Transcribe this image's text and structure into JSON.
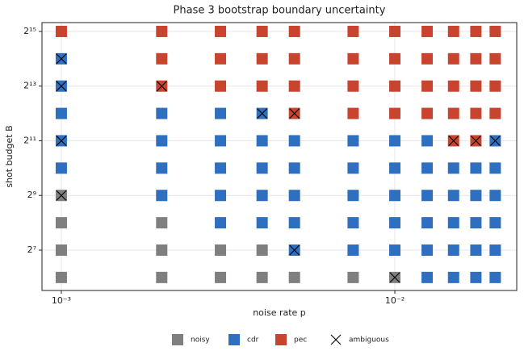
{
  "chart_data": {
    "type": "scatter",
    "title": "Phase 3 bootstrap boundary uncertainty",
    "x_label": "noise rate p",
    "y_label": "shot budget B",
    "x_log": true,
    "y_log_base": 2,
    "grid": true,
    "legend": "bottom",
    "xlim": [
      0.000875,
      0.0232
    ],
    "ylim": [
      46,
      41000
    ],
    "xticks": [
      {
        "value": 0.001,
        "label": "10⁻³"
      },
      {
        "value": 0.01,
        "label": "10⁻²"
      }
    ],
    "yticks": [
      {
        "value": 128,
        "label": "2⁷"
      },
      {
        "value": 512,
        "label": "2⁹"
      },
      {
        "value": 2048,
        "label": "2¹¹"
      },
      {
        "value": 8192,
        "label": "2¹³"
      },
      {
        "value": 32768,
        "label": "2¹⁵"
      }
    ],
    "series": [
      {
        "name": "noisy",
        "color": "#7f7f7f",
        "marker": "square",
        "x": [
          0.001,
          0.001,
          0.001,
          0.001,
          0.002,
          0.002,
          0.002,
          0.003,
          0.003,
          0.004,
          0.004,
          0.005,
          0.0075,
          0.01
        ],
        "values": [
          64,
          128,
          256,
          512,
          64,
          128,
          256,
          64,
          128,
          64,
          128,
          64,
          64,
          64
        ]
      },
      {
        "name": "cdr",
        "color": "#2f6fc0",
        "marker": "square",
        "x": [
          0.001,
          0.001,
          0.001,
          0.001,
          0.001,
          0.002,
          0.002,
          0.002,
          0.002,
          0.003,
          0.003,
          0.003,
          0.003,
          0.003,
          0.004,
          0.004,
          0.004,
          0.004,
          0.004,
          0.005,
          0.005,
          0.005,
          0.005,
          0.005,
          0.0075,
          0.0075,
          0.0075,
          0.0075,
          0.0075,
          0.01,
          0.01,
          0.01,
          0.01,
          0.01,
          0.0125,
          0.0125,
          0.0125,
          0.0125,
          0.0125,
          0.0125,
          0.015,
          0.015,
          0.015,
          0.015,
          0.015,
          0.0175,
          0.0175,
          0.0175,
          0.0175,
          0.0175,
          0.02,
          0.02,
          0.02,
          0.02,
          0.02,
          0.02
        ],
        "values": [
          1024,
          2048,
          4096,
          8192,
          16384,
          512,
          1024,
          2048,
          4096,
          256,
          512,
          1024,
          2048,
          4096,
          256,
          512,
          1024,
          2048,
          4096,
          128,
          256,
          512,
          1024,
          2048,
          128,
          256,
          512,
          1024,
          2048,
          128,
          256,
          512,
          1024,
          2048,
          64,
          128,
          256,
          512,
          1024,
          2048,
          64,
          128,
          256,
          512,
          1024,
          64,
          128,
          256,
          512,
          1024,
          64,
          128,
          256,
          512,
          1024,
          2048
        ]
      },
      {
        "name": "pec",
        "color": "#c9442f",
        "marker": "square",
        "x": [
          0.001,
          0.002,
          0.002,
          0.002,
          0.003,
          0.003,
          0.003,
          0.004,
          0.004,
          0.004,
          0.005,
          0.005,
          0.005,
          0.005,
          0.0075,
          0.0075,
          0.0075,
          0.0075,
          0.01,
          0.01,
          0.01,
          0.01,
          0.0125,
          0.0125,
          0.0125,
          0.0125,
          0.015,
          0.015,
          0.015,
          0.015,
          0.015,
          0.0175,
          0.0175,
          0.0175,
          0.0175,
          0.0175,
          0.02,
          0.02,
          0.02,
          0.02
        ],
        "values": [
          32768,
          8192,
          16384,
          32768,
          8192,
          16384,
          32768,
          8192,
          16384,
          32768,
          4096,
          8192,
          16384,
          32768,
          4096,
          8192,
          16384,
          32768,
          4096,
          8192,
          16384,
          32768,
          4096,
          8192,
          16384,
          32768,
          2048,
          4096,
          8192,
          16384,
          32768,
          2048,
          4096,
          8192,
          16384,
          32768,
          4096,
          8192,
          16384,
          32768
        ]
      },
      {
        "name": "ambiguous",
        "color": "#000000",
        "marker": "x",
        "x": [
          0.001,
          0.001,
          0.001,
          0.001,
          0.002,
          0.004,
          0.005,
          0.005,
          0.01,
          0.015,
          0.0175,
          0.02
        ],
        "values": [
          512,
          2048,
          8192,
          16384,
          8192,
          4096,
          128,
          4096,
          64,
          2048,
          2048,
          2048
        ]
      }
    ]
  }
}
